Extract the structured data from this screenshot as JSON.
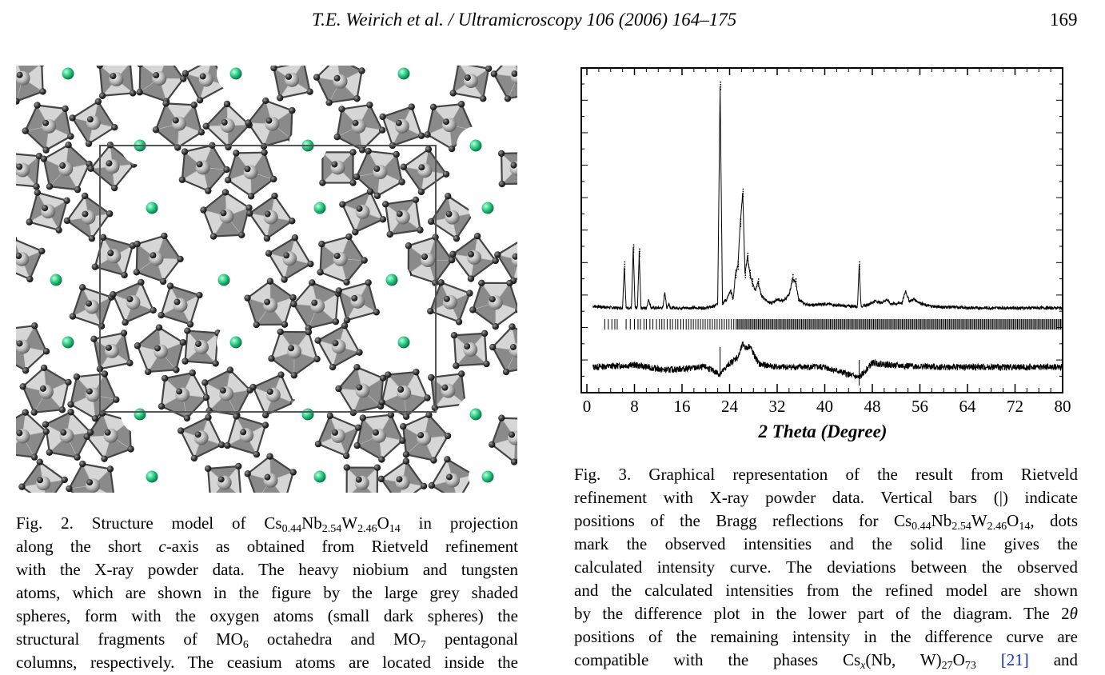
{
  "header": {
    "running_head": "T.E. Weirich et al. / Ultramicroscopy 106 (2006) 164–175",
    "page_number": "169"
  },
  "figure3": {
    "x_axis_label": "2 Theta (Degree)",
    "x_ticks": [
      "0",
      "8",
      "16",
      "24",
      "32",
      "40",
      "48",
      "56",
      "64",
      "72",
      "80"
    ]
  },
  "chart_data": {
    "type": "line",
    "title": "",
    "xlabel": "2 Theta (Degree)",
    "ylabel": "",
    "xlim": [
      0,
      80
    ],
    "x_ticks": [
      0,
      8,
      16,
      24,
      32,
      40,
      48,
      56,
      64,
      72,
      80
    ],
    "y_ticks_labeled": false,
    "series": [
      {
        "role": "observed (dots) and calculated (solid line)",
        "x": [
          1.0,
          5.0,
          6.0,
          6.3,
          6.6,
          7.5,
          7.8,
          8.1,
          8.5,
          8.8,
          9.1,
          10.0,
          10.4,
          10.8,
          12.8,
          13.1,
          13.4,
          13.8,
          14.1,
          16.0,
          18.0,
          20.0,
          21.5,
          22.0,
          22.4,
          22.8,
          23.5,
          24.2,
          24.6,
          25.0,
          25.4,
          25.8,
          26.2,
          26.6,
          27.0,
          27.4,
          27.8,
          28.3,
          28.8,
          29.3,
          30.0,
          31.0,
          32.0,
          33.0,
          34.0,
          34.6,
          35.1,
          35.6,
          36.5,
          38.0,
          40.0,
          42.0,
          44.0,
          45.5,
          45.8,
          46.1,
          47.0,
          48.5,
          49.5,
          50.5,
          51.0,
          52.0,
          53.0,
          53.6,
          54.2,
          55.0,
          56.0,
          57.0,
          58.0,
          60.0,
          62.0,
          64.0,
          66.0,
          68.0,
          70.0,
          72.0,
          74.0,
          76.0,
          78.0,
          80.0
        ],
        "y": [
          1.2,
          1.0,
          1.0,
          6.0,
          1.0,
          1.0,
          8.0,
          1.0,
          1.0,
          7.5,
          1.0,
          1.0,
          2.0,
          1.0,
          1.0,
          3.0,
          1.0,
          1.5,
          1.0,
          1.0,
          1.0,
          1.0,
          1.2,
          1.5,
          27.0,
          1.5,
          2.0,
          3.0,
          2.0,
          5.0,
          6.0,
          11.0,
          14.5,
          5.0,
          7.0,
          5.0,
          4.0,
          3.0,
          4.0,
          2.5,
          2.0,
          1.5,
          2.0,
          1.8,
          2.5,
          4.5,
          4.0,
          2.0,
          1.5,
          1.3,
          1.5,
          1.3,
          1.2,
          1.2,
          6.0,
          1.2,
          1.3,
          1.8,
          1.6,
          2.0,
          1.5,
          1.5,
          1.6,
          3.0,
          1.8,
          2.0,
          1.6,
          1.3,
          1.2,
          1.1,
          1.1,
          1.0,
          1.0,
          1.0,
          1.0,
          1.0,
          1.0,
          1.0,
          1.0,
          1.0
        ]
      },
      {
        "role": "Bragg reflection positions (vertical bars)",
        "x": [
          3.0,
          3.6,
          4.2,
          4.7,
          5.1,
          6.6,
          7.3,
          8.0,
          8.6,
          9.0,
          9.6,
          10.0,
          10.6,
          11.1,
          11.7,
          12.2,
          12.6,
          13.0,
          13.5,
          14.0,
          14.4,
          14.9,
          15.3,
          15.8,
          16.2,
          16.7,
          17.1,
          17.5,
          17.9,
          18.3,
          18.7,
          19.1,
          19.5,
          19.9,
          20.3,
          20.7,
          21.1,
          21.5,
          21.9,
          22.3,
          22.7,
          23.1,
          23.5,
          23.9,
          24.3,
          24.7
        ]
      },
      {
        "role": "difference curve (observed - calculated)",
        "x": [
          1.0,
          8.0,
          13.0,
          20.0,
          22.4,
          24.0,
          25.5,
          26.2,
          26.8,
          27.4,
          28.0,
          29.0,
          32.0,
          40.0,
          45.8,
          48.0,
          52.0,
          60.0,
          70.0,
          80.0
        ],
        "y": [
          0.0,
          0.3,
          -0.4,
          0.0,
          -1.0,
          0.5,
          1.5,
          3.2,
          2.6,
          3.0,
          1.8,
          0.4,
          0.0,
          0.0,
          -1.5,
          0.6,
          0.2,
          0.0,
          0.0,
          0.0
        ]
      }
    ]
  },
  "caption_fig2": {
    "line1_pre": "Fig. 2. Structure model of Cs",
    "line1_sub1": "0.44",
    "line1_mid1": "Nb",
    "line1_sub2": "2.54",
    "line1_mid2": "W",
    "line1_sub3": "2.46",
    "line1_mid3": "O",
    "line1_sub4": "14",
    "line1_post": " in projection",
    "line2_pre": "along the short ",
    "line2_ital": "c",
    "line2_post": "-axis as obtained from Rietveld refinement",
    "line3": "with the X-ray powder data. The heavy niobium and tungsten",
    "line4": "atoms, which are shown in the figure by the large grey shaded",
    "line5": "spheres, form with the oxygen atoms (small dark spheres) the",
    "line6_pre": "structural fragments of MO",
    "line6_sub1": "6",
    "line6_mid": " octahedra and MO",
    "line6_sub2": "7",
    "line6_post": " pentagonal",
    "line7": "columns, respectively. The ceasium atoms are located inside the"
  },
  "caption_fig3": {
    "line1": "Fig. 3. Graphical representation of the result from Rietveld",
    "line2": "refinement with X-ray powder data. Vertical bars (|) indicate",
    "line3_pre": "positions of the Bragg reflections for Cs",
    "line3_sub1": "0.44",
    "line3_mid1": "Nb",
    "line3_sub2": "2.54",
    "line3_mid2": "W",
    "line3_sub3": "2.46",
    "line3_mid3": "O",
    "line3_sub4": "14",
    "line3_post": ", dots",
    "line4": "mark the observed intensities and the solid line gives the",
    "line5": "calculated intensity curve. The deviations between the observed",
    "line6": "and the calculated intensities from the refined model are shown",
    "line7_pre": "by the difference plot in the lower part of the diagram. The 2",
    "line7_theta": "θ",
    "line8": "positions of the remaining intensity in the difference curve are",
    "line9_pre": "compatible with the phases Cs",
    "line9_sub1": "x",
    "line9_mid1": "(Nb, W)",
    "line9_sub2": "27",
    "line9_mid2": "O",
    "line9_sub3": "73",
    "line9_ref": "[21]",
    "line9_post": " and"
  },
  "colors": {
    "ink": "#000000",
    "polyhedron_light": "#d6d6d6",
    "polyhedron_dark": "#8a8a8a",
    "heavy_atom": "#c8c8c8",
    "oxygen_atom": "#3a3a3a",
    "cesium_atom": "#22c47c",
    "unit_cell": "#555555",
    "reference_link": "#1a33a6"
  }
}
